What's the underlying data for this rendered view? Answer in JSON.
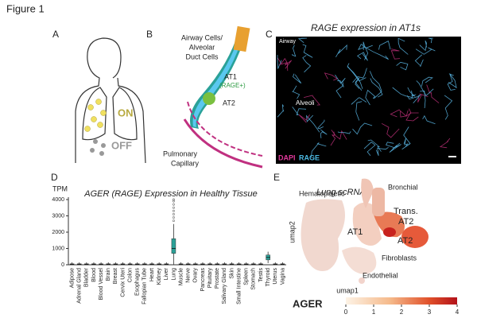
{
  "figure_title": "Figure 1",
  "panel_a": {
    "label": "A",
    "on": "ON",
    "off": "OFF"
  },
  "panel_b": {
    "label": "B",
    "cell_lines": [
      "Airway Cells/",
      "Alveolar",
      "Duct Cells"
    ],
    "at1": "AT1",
    "at1_note": "(RAGE+)",
    "at2": "AT2",
    "capillary_lines": [
      "Pulmonary",
      "Capillary"
    ]
  },
  "panel_c": {
    "label": "C",
    "title": "RAGE expression in AT1s",
    "airway": "Airway",
    "alveoli": "Alveoli",
    "legend": [
      {
        "name": "DAPI",
        "color": "#e0389a"
      },
      {
        "name": "RAGE",
        "color": "#4bb8e0"
      }
    ]
  },
  "panel_d": {
    "label": "D",
    "type": "box",
    "title": "AGER (RAGE) Expression in Healthy Tissue",
    "y_label": "TPM",
    "color": "#2aa198",
    "categories": [
      "Adipose",
      "Adrenal Gland",
      "Bladder",
      "Blood",
      "Blood Vessel",
      "Brain",
      "Breast",
      "Cervix Uteri",
      "Colon",
      "Esophagus",
      "Fallopian Tube",
      "Heart",
      "Kidney",
      "Liver",
      "Lung",
      "Muscle",
      "Nerve",
      "Ovary",
      "Pancreas",
      "Pituitary",
      "Prostate",
      "Salivary Gland",
      "Skin",
      "Small Intestine",
      "Spleen",
      "Stomach",
      "Testis",
      "Thyroid",
      "Uterus",
      "Vagina"
    ],
    "ylim": [
      0,
      4000
    ],
    "yticks": [
      0,
      1000,
      2000,
      3000,
      4000
    ],
    "low": [
      0,
      0,
      0,
      0,
      0,
      0,
      0,
      0,
      0,
      0,
      0,
      0,
      0,
      0,
      0,
      0,
      0,
      0,
      0,
      0,
      0,
      0,
      0,
      0,
      0,
      0,
      0,
      100,
      0,
      0
    ],
    "q1": [
      10,
      10,
      10,
      10,
      10,
      10,
      10,
      10,
      10,
      10,
      10,
      10,
      10,
      10,
      700,
      10,
      10,
      10,
      10,
      10,
      10,
      10,
      10,
      10,
      10,
      10,
      10,
      300,
      10,
      10
    ],
    "median": [
      30,
      30,
      30,
      30,
      30,
      30,
      30,
      30,
      30,
      30,
      30,
      30,
      30,
      30,
      1000,
      30,
      30,
      30,
      30,
      30,
      30,
      30,
      30,
      30,
      30,
      30,
      30,
      450,
      30,
      30
    ],
    "q3": [
      60,
      60,
      60,
      60,
      60,
      60,
      60,
      60,
      60,
      60,
      60,
      60,
      60,
      60,
      1600,
      60,
      60,
      60,
      60,
      60,
      60,
      60,
      60,
      60,
      60,
      60,
      60,
      600,
      60,
      60
    ],
    "high": [
      150,
      150,
      150,
      150,
      150,
      150,
      150,
      150,
      150,
      150,
      150,
      150,
      150,
      150,
      2500,
      150,
      150,
      150,
      150,
      150,
      150,
      150,
      150,
      150,
      150,
      150,
      150,
      800,
      150,
      150
    ],
    "outliers": [
      [],
      [],
      [],
      [],
      [],
      [],
      [],
      [],
      [],
      [],
      [],
      [],
      [],
      [],
      [
        2700,
        2900,
        3100,
        3300,
        3500,
        3700,
        3900,
        4000
      ],
      [],
      [],
      [],
      [],
      [],
      [],
      [],
      [],
      [],
      [],
      [],
      [],
      [],
      [],
      []
    ]
  },
  "panel_e": {
    "label": "E",
    "title": "Lung scRNA Seq",
    "x_label": "umap1",
    "y_label": "umap2",
    "hematopoietic": "Hematopoietic",
    "bronchial": "Bronchial",
    "trans_lines": [
      "Trans.",
      "AT2"
    ],
    "at1": "AT1",
    "at2": "AT2",
    "fibroblasts": "Fibroblasts",
    "endothelial": "Endothelial",
    "colorbar": {
      "title": "AGER",
      "lim": [
        0,
        4
      ],
      "ticks": [
        0,
        1,
        2,
        3,
        4
      ]
    }
  }
}
